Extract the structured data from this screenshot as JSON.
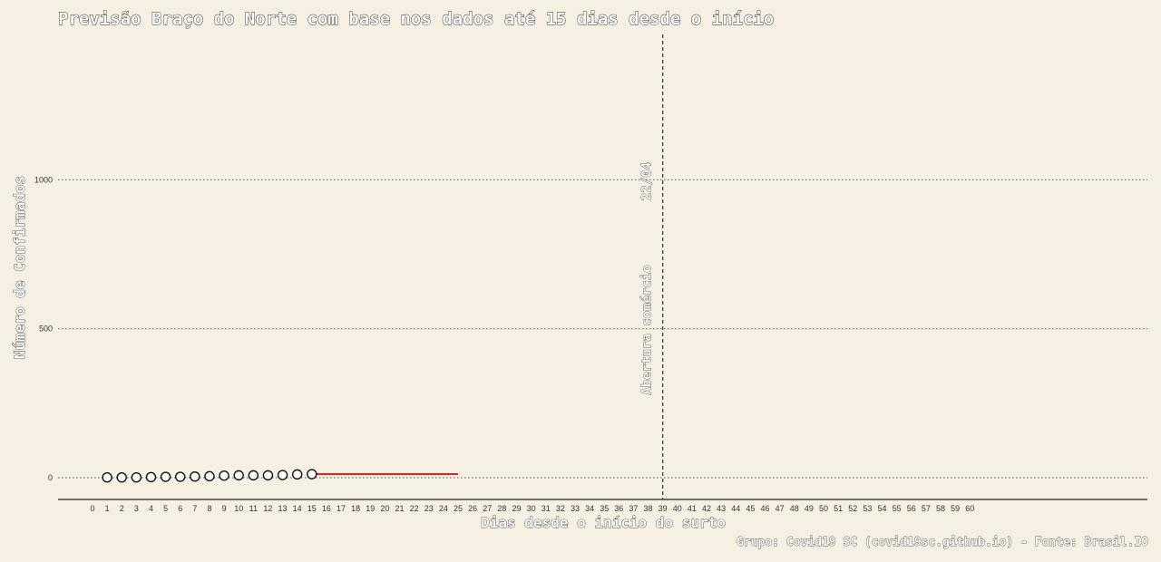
{
  "chart_data": {
    "type": "line",
    "title": "Previsão Braço do Norte com base nos dados até 15 dias desde o início",
    "xlabel": "Dias desde o início do surto",
    "ylabel": "Número de Confirmados",
    "caption": "Grupo: Covid19 SC (covid19sc.github.io) - Fonte: Brasil.IO",
    "xlim": [
      0,
      60
    ],
    "ylim": [
      0,
      1000
    ],
    "y_ticks": [
      0,
      500,
      1000
    ],
    "x_ticks": [
      0,
      1,
      2,
      3,
      4,
      5,
      6,
      7,
      8,
      9,
      10,
      11,
      12,
      13,
      14,
      15,
      16,
      17,
      18,
      19,
      20,
      21,
      22,
      23,
      24,
      25,
      26,
      27,
      28,
      29,
      30,
      31,
      32,
      33,
      34,
      35,
      36,
      37,
      38,
      39,
      40,
      41,
      42,
      43,
      44,
      45,
      46,
      47,
      48,
      49,
      50,
      51,
      52,
      53,
      54,
      55,
      56,
      57,
      58,
      59,
      60
    ],
    "grid": true,
    "series": [
      {
        "type": "scatter",
        "x": [
          1,
          2,
          3,
          4,
          5,
          6,
          7,
          8,
          9,
          10,
          11,
          12,
          13,
          14,
          15
        ],
        "y": [
          1,
          1,
          1,
          2,
          3,
          3,
          4,
          5,
          7,
          8,
          8,
          8,
          9,
          11,
          12
        ]
      },
      {
        "type": "line",
        "color": "#e0201b",
        "x": [
          15,
          16,
          17,
          18,
          19,
          20,
          21,
          22,
          23,
          24,
          25
        ],
        "y": [
          12,
          12,
          12,
          12,
          12,
          12,
          12,
          12,
          12,
          12,
          12
        ]
      }
    ],
    "vline": {
      "x": 39,
      "labels": [
        "22/04",
        "Abertura comércio"
      ]
    }
  }
}
